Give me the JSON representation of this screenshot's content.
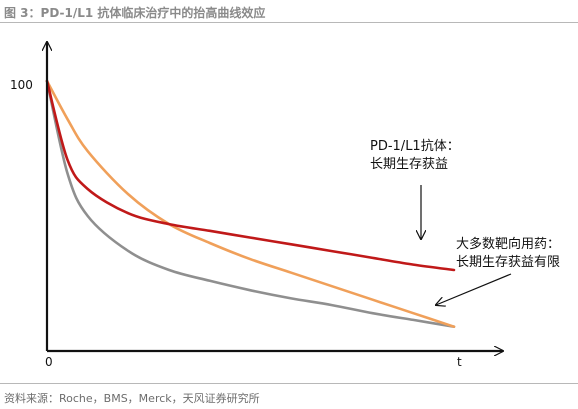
{
  "figure": {
    "title": "图 3：PD-1/L1 抗体临床治疗中的抬高曲线效应",
    "source": "资料来源：Roche，BMS，Merck，天风证券研究所"
  },
  "chart_data": {
    "type": "line",
    "title": "",
    "xlabel": "t",
    "ylabel": "",
    "x_ticks": [
      "0"
    ],
    "y_ticks": [
      "100"
    ],
    "xlim": [
      0,
      1
    ],
    "ylim": [
      0,
      100
    ],
    "grid": false,
    "legend": "none",
    "series": [
      {
        "name": "",
        "color": "#c01919",
        "x": [
          0,
          0.05,
          0.1,
          0.2,
          0.3,
          0.4,
          0.5,
          0.6,
          0.7,
          0.8,
          0.9,
          1.0
        ],
        "y": [
          100,
          71,
          60,
          51,
          47,
          44.5,
          42,
          39.5,
          37,
          34.5,
          32,
          30
        ]
      },
      {
        "name": "",
        "color": "#f0a05a",
        "x": [
          0,
          0.05,
          0.1,
          0.2,
          0.3,
          0.4,
          0.5,
          0.6,
          0.7,
          0.8,
          0.9,
          1.0
        ],
        "y": [
          100,
          86,
          74,
          58,
          47,
          40,
          34,
          29,
          24,
          19,
          14,
          9
        ]
      },
      {
        "name": "",
        "color": "#8f8f8f",
        "x": [
          0,
          0.05,
          0.1,
          0.2,
          0.3,
          0.4,
          0.5,
          0.6,
          0.7,
          0.8,
          0.9,
          1.0
        ],
        "y": [
          100,
          66,
          50,
          37,
          30,
          26,
          22.5,
          19.5,
          17,
          14,
          11.5,
          9
        ]
      }
    ],
    "annotations": [
      {
        "lines": [
          "PD-1/L1抗体：",
          "长期生存获益"
        ]
      },
      {
        "lines": [
          "大多数靶向用药：",
          "长期生存获益有限"
        ]
      }
    ]
  }
}
